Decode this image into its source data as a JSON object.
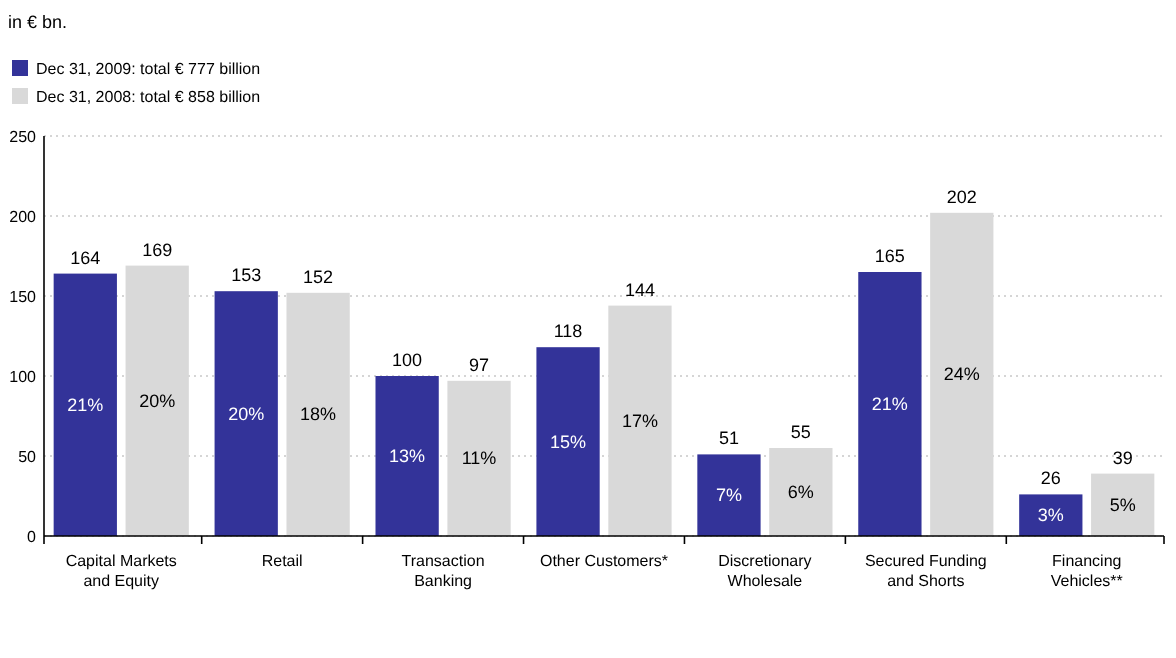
{
  "chart_data": {
    "type": "bar",
    "annotations": [
      "in € bn.",
      "21%",
      "20%",
      "13%",
      "15%",
      "7%",
      "21%",
      "3%",
      "20%",
      "18%",
      "11%",
      "17%",
      "6%",
      "24%",
      "5%"
    ],
    "categories": [
      "Capital Markets and Equity",
      "Retail",
      "Transaction Banking",
      "Other Customers*",
      "Discretionary Wholesale",
      "Secured Funding and Shorts",
      "Financing Vehicles**"
    ],
    "series": [
      {
        "name": "Dec 31, 2009: total € 777 billion",
        "color": "#333399",
        "values": [
          164,
          153,
          100,
          118,
          51,
          165,
          26
        ]
      },
      {
        "name": "Dec 31, 2008: total € 858 billion",
        "color": "#d9d9d9",
        "values": [
          169,
          152,
          97,
          144,
          55,
          202,
          39
        ]
      }
    ],
    "ylim": [
      0,
      250
    ],
    "yticks": [
      0,
      50,
      100,
      150,
      200,
      250
    ],
    "grid": "y",
    "legend": "top left",
    "data_labels": true
  }
}
